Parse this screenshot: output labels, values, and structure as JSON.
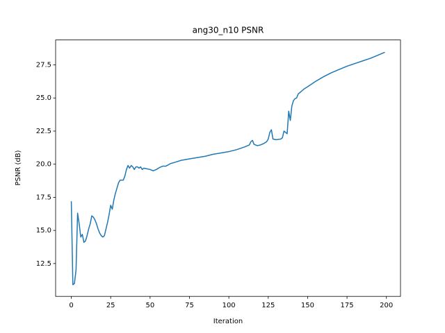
{
  "chart_data": {
    "type": "line",
    "title": "ang30_n10 PSNR",
    "x_label": "Iteration",
    "y_label": "PSNR (dB)",
    "x": [
      0,
      1,
      2,
      3,
      4,
      5,
      6,
      7,
      8,
      9,
      10,
      11,
      12,
      13,
      14,
      15,
      16,
      17,
      18,
      19,
      20,
      21,
      22,
      23,
      24,
      25,
      26,
      27,
      28,
      29,
      30,
      31,
      32,
      33,
      34,
      35,
      36,
      37,
      38,
      39,
      40,
      41,
      42,
      43,
      44,
      45,
      46,
      48,
      50,
      52,
      54,
      56,
      58,
      60,
      63,
      66,
      70,
      75,
      80,
      85,
      90,
      95,
      100,
      105,
      110,
      113,
      114,
      115,
      116,
      118,
      120,
      122,
      124,
      125,
      126,
      127,
      128,
      130,
      133,
      134,
      135,
      136,
      137,
      138,
      139,
      140,
      141,
      142,
      143,
      144,
      146,
      148,
      150,
      155,
      160,
      165,
      170,
      175,
      180,
      185,
      190,
      195,
      199
    ],
    "series": [
      {
        "name": "PSNR",
        "color": "#1f77b4",
        "values": [
          17.2,
          10.9,
          11.0,
          12.0,
          16.3,
          15.5,
          14.5,
          14.7,
          14.1,
          14.2,
          14.6,
          15.1,
          15.5,
          16.1,
          16.0,
          15.8,
          15.5,
          15.1,
          14.8,
          14.6,
          14.5,
          14.6,
          15.1,
          15.6,
          16.2,
          16.9,
          16.6,
          17.3,
          17.8,
          18.2,
          18.6,
          18.8,
          18.8,
          18.8,
          19.1,
          19.6,
          19.9,
          19.7,
          19.9,
          19.8,
          19.6,
          19.8,
          19.8,
          19.7,
          19.8,
          19.6,
          19.7,
          19.65,
          19.6,
          19.5,
          19.6,
          19.75,
          19.85,
          19.85,
          20.05,
          20.15,
          20.3,
          20.4,
          20.5,
          20.6,
          20.75,
          20.85,
          20.95,
          21.1,
          21.3,
          21.45,
          21.7,
          21.8,
          21.5,
          21.4,
          21.45,
          21.55,
          21.7,
          21.9,
          22.4,
          22.6,
          21.9,
          21.85,
          21.9,
          22.0,
          22.5,
          22.4,
          22.3,
          24.0,
          23.3,
          24.4,
          24.8,
          24.95,
          25.0,
          25.3,
          25.5,
          25.7,
          25.85,
          26.25,
          26.6,
          26.9,
          27.15,
          27.4,
          27.6,
          27.8,
          28.0,
          28.25,
          28.45
        ]
      }
    ],
    "xlim": [
      -9.95,
      208.95
    ],
    "ylim": [
      10.02,
      29.38
    ],
    "xticks": [
      0,
      25,
      50,
      75,
      100,
      125,
      150,
      175,
      200
    ],
    "yticks": [
      12.5,
      {
        "value": 15,
        "label": "15.0"
      },
      17.5,
      {
        "value": 20,
        "label": "20.0"
      },
      22.5,
      {
        "value": 25,
        "label": "25.0"
      },
      27.5
    ],
    "grid": false
  }
}
